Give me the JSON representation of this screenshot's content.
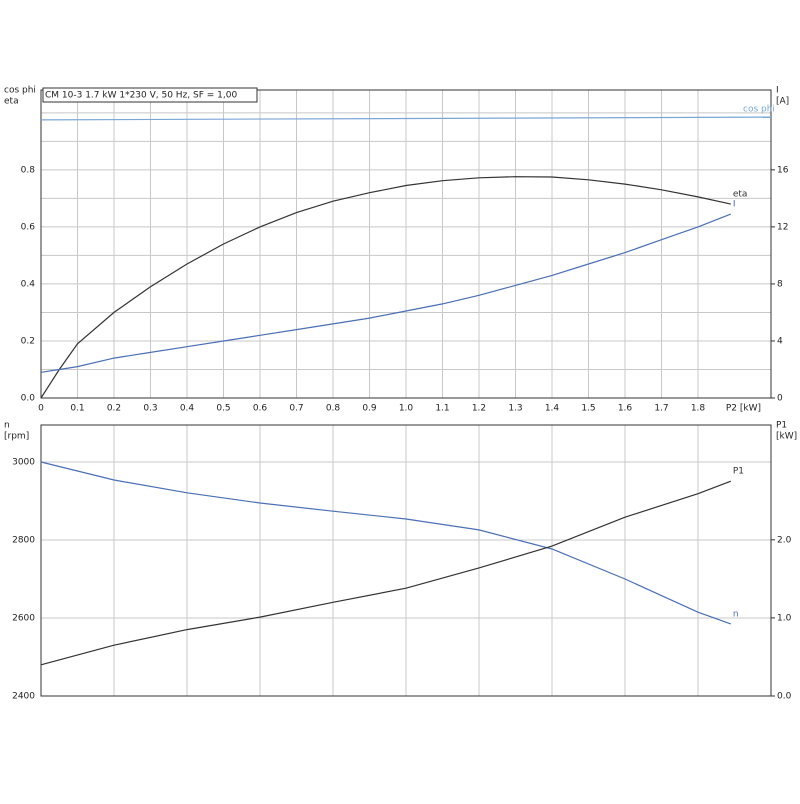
{
  "chart_data": [
    {
      "type": "line",
      "title": "CM 10-3   1.7 kW   1*230 V, 50 Hz, SF = 1,00",
      "ylabel": [
        "cos phi",
        "eta"
      ],
      "y2label": [
        "I",
        "[A]"
      ],
      "xlabel": "P2 [kW]",
      "grid": true,
      "xlim": [
        0,
        2
      ],
      "xticks": [
        0,
        0.1,
        0.2,
        0.3,
        0.4,
        0.5,
        0.6,
        0.7,
        0.8,
        0.9,
        {
          "value": 1,
          "label": "1.0"
        },
        1.1,
        1.2,
        1.3,
        1.4,
        1.5,
        1.6,
        1.7,
        1.8
      ],
      "ylim": [
        0,
        1.08
      ],
      "yticks": [
        {
          "value": 0,
          "label": "0.0"
        },
        0.2,
        0.4,
        0.6,
        0.8
      ],
      "ygrid": [
        0.1,
        0.3,
        0.5,
        0.7,
        0.9,
        1.0
      ],
      "y2lim": [
        0,
        21.6
      ],
      "y2ticks": [
        0,
        4,
        8,
        12,
        16
      ],
      "x": [
        0,
        0.05,
        0.1,
        0.2,
        0.3,
        0.4,
        0.5,
        0.6,
        0.7,
        0.8,
        0.9,
        1.0,
        1.1,
        1.2,
        1.3,
        1.4,
        1.5,
        1.6,
        1.7,
        1.8,
        1.89
      ],
      "series": [
        {
          "name": "cos phi",
          "color": "#7aa6d6",
          "x": [
            0,
            2
          ],
          "values": [
            0.975,
            0.985
          ]
        },
        {
          "name": "eta",
          "color": "#333333",
          "values": [
            0,
            0.1,
            0.19,
            0.3,
            0.39,
            0.47,
            0.54,
            0.6,
            0.65,
            0.69,
            0.72,
            0.745,
            0.762,
            0.772,
            0.776,
            0.775,
            0.765,
            0.75,
            0.73,
            0.705,
            0.68
          ]
        },
        {
          "name": "I",
          "color": "#4a6fb5",
          "axis": "y2",
          "values": [
            1.8,
            2.0,
            2.2,
            2.8,
            3.2,
            3.6,
            4.0,
            4.4,
            4.8,
            5.2,
            5.6,
            6.1,
            6.6,
            7.2,
            7.9,
            8.6,
            9.4,
            10.2,
            11.1,
            12.0,
            12.9
          ]
        }
      ]
    },
    {
      "type": "line",
      "ylabel": [
        "n",
        "[rpm]"
      ],
      "y2label": [
        "P1",
        "[kW]"
      ],
      "grid": true,
      "xtick_labels": false,
      "xlim": [
        0,
        2
      ],
      "xticks": [
        0.2,
        0.4,
        0.6,
        0.8,
        1.0,
        1.2,
        1.4,
        1.6,
        1.8
      ],
      "ylim": [
        2400,
        3095
      ],
      "yticks": [
        2400,
        2600,
        2800,
        3000
      ],
      "y2lim": [
        0,
        3.47
      ],
      "y2ticks": [
        {
          "value": 0,
          "label": "0.0"
        },
        {
          "value": 1,
          "label": "1.0"
        },
        {
          "value": 2,
          "label": "2.0"
        }
      ],
      "x": [
        0,
        0.2,
        0.4,
        0.6,
        0.8,
        1.0,
        1.2,
        1.4,
        1.6,
        1.8,
        1.89
      ],
      "series": [
        {
          "name": "n",
          "color": "#4a6fb5",
          "values": [
            3000,
            2954,
            2921,
            2895,
            2874,
            2854,
            2826,
            2777,
            2700,
            2615,
            2585
          ]
        },
        {
          "name": "P1",
          "color": "#333333",
          "axis": "y2",
          "values": [
            0.4,
            0.65,
            0.85,
            1.01,
            1.2,
            1.38,
            1.64,
            1.92,
            2.29,
            2.59,
            2.75
          ]
        }
      ]
    }
  ]
}
